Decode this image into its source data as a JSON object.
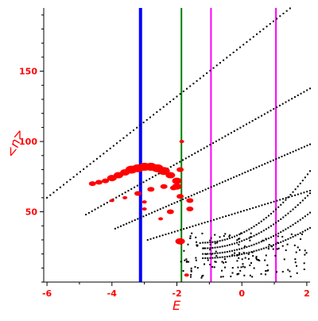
{
  "chart_data": {
    "type": "scatter",
    "xlabel": "E",
    "ylabel": "<n>",
    "xlim": [
      -6.1,
      2.1
    ],
    "ylim": [
      0,
      195
    ],
    "xticks": [
      -6,
      -4,
      -2,
      0,
      2
    ],
    "xtick_labels": [
      "-6",
      "-4",
      "-2",
      "0",
      "2"
    ],
    "yticks": [
      50,
      100,
      150
    ],
    "ytick_labels": [
      "50",
      "100",
      "150"
    ],
    "grid": false,
    "colors": {
      "axis": "#000000",
      "labels": "#ff0000",
      "points": "#000000",
      "highlight": "#ff0000",
      "blue_line": "#0000ff",
      "green_line": "#008000",
      "magenta_line": "#ff00ff"
    },
    "vertical_lines": [
      {
        "x": -3.12,
        "color": "#0000ff"
      },
      {
        "x": -1.86,
        "color": "#008000"
      },
      {
        "x": -0.95,
        "color": "#ff00ff"
      },
      {
        "x": 1.05,
        "color": "#ff00ff"
      }
    ],
    "bands": [
      {
        "x_start": -6.0,
        "x_end": 2.1,
        "y_start": 60,
        "slope_ref": 82,
        "shape": "upper",
        "n": 80
      },
      {
        "x_start": -4.8,
        "x_end": 2.1,
        "y_start": 48,
        "shape": "second",
        "n": 75
      },
      {
        "x_start": -3.9,
        "x_end": 2.1,
        "y_start": 38,
        "shape": "third",
        "n": 70
      },
      {
        "x_start": -2.9,
        "x_end": 2.1,
        "y_start": 30,
        "shape": "fourth",
        "n": 55
      }
    ],
    "highlight_points": [
      {
        "x": -4.6,
        "y": 70,
        "size": 3
      },
      {
        "x": -4.4,
        "y": 71,
        "size": 3
      },
      {
        "x": -4.2,
        "y": 72,
        "size": 3
      },
      {
        "x": -4.0,
        "y": 74,
        "size": 4
      },
      {
        "x": -3.8,
        "y": 76,
        "size": 4
      },
      {
        "x": -3.6,
        "y": 78,
        "size": 4
      },
      {
        "x": -3.4,
        "y": 80,
        "size": 5
      },
      {
        "x": -3.2,
        "y": 81,
        "size": 5
      },
      {
        "x": -3.0,
        "y": 82,
        "size": 5
      },
      {
        "x": -2.8,
        "y": 82,
        "size": 5
      },
      {
        "x": -2.6,
        "y": 81,
        "size": 5
      },
      {
        "x": -2.4,
        "y": 79,
        "size": 5
      },
      {
        "x": -2.2,
        "y": 76,
        "size": 4
      },
      {
        "x": -2.0,
        "y": 72,
        "size": 4
      },
      {
        "x": -1.9,
        "y": 80,
        "size": 3
      },
      {
        "x": -1.85,
        "y": 100,
        "size": 2
      },
      {
        "x": -4.0,
        "y": 58,
        "size": 2
      },
      {
        "x": -3.6,
        "y": 60,
        "size": 2
      },
      {
        "x": -3.2,
        "y": 63,
        "size": 3
      },
      {
        "x": -2.8,
        "y": 66,
        "size": 3
      },
      {
        "x": -2.4,
        "y": 68,
        "size": 3
      },
      {
        "x": -2.1,
        "y": 67,
        "size": 3
      },
      {
        "x": -1.9,
        "y": 61,
        "size": 3
      },
      {
        "x": -2.0,
        "y": 68,
        "size": 4
      },
      {
        "x": -3.0,
        "y": 57,
        "size": 2
      },
      {
        "x": -3.0,
        "y": 52,
        "size": 2
      },
      {
        "x": -2.5,
        "y": 45,
        "size": 2
      },
      {
        "x": -2.2,
        "y": 50,
        "size": 3
      },
      {
        "x": -1.6,
        "y": 58,
        "size": 3
      },
      {
        "x": -1.6,
        "y": 52,
        "size": 3
      },
      {
        "x": -1.9,
        "y": 29,
        "size": 4
      },
      {
        "x": -1.7,
        "y": 5,
        "size": 2
      }
    ]
  }
}
